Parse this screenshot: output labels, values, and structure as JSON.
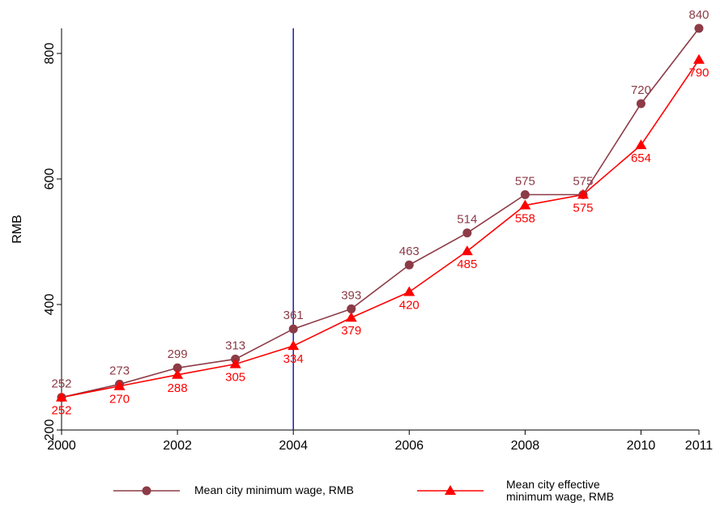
{
  "chart_data": {
    "type": "line",
    "x": [
      2000,
      2001,
      2002,
      2003,
      2004,
      2005,
      2006,
      2007,
      2008,
      2009,
      2010,
      2011
    ],
    "series": [
      {
        "name": "Mean city minimum wage, RMB",
        "color": "#8c3b47",
        "marker": "circle",
        "label_position": "above",
        "values": [
          252,
          273,
          299,
          313,
          361,
          393,
          463,
          514,
          575,
          575,
          720,
          840
        ]
      },
      {
        "name": "Mean city effective minimum wage, RMB",
        "color": "#ff0000",
        "marker": "triangle",
        "label_position": "below",
        "values": [
          252,
          270,
          288,
          305,
          334,
          379,
          420,
          485,
          558,
          575,
          654,
          790
        ]
      }
    ],
    "y_label": "RMB",
    "xlim": [
      2000,
      2011
    ],
    "xticks": [
      2000,
      2002,
      2004,
      2006,
      2008,
      2010,
      2011
    ],
    "ylim": [
      200,
      840
    ],
    "yticks": [
      200,
      400,
      600,
      800
    ],
    "vline": {
      "x": 2004,
      "color": "#1a1aaa"
    },
    "legend": "bottom"
  }
}
